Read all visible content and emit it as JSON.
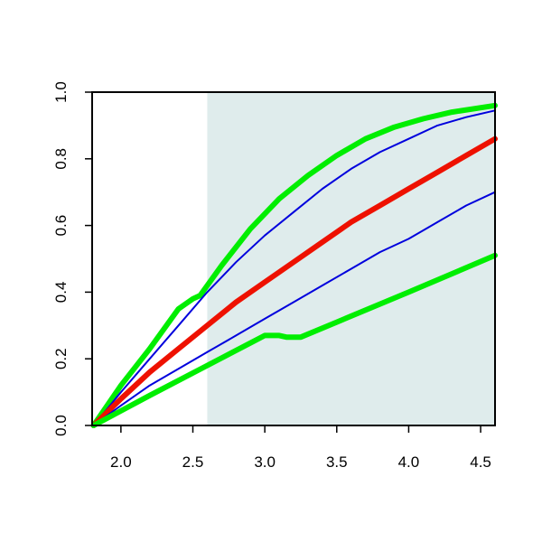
{
  "chart_data": {
    "type": "line",
    "xlim": [
      1.8,
      4.6
    ],
    "ylim": [
      0,
      1
    ],
    "x_ticks": [
      {
        "value": 2.0,
        "label": "2.0"
      },
      {
        "value": 2.5,
        "label": "2.5"
      },
      {
        "value": 3.0,
        "label": "3.0"
      },
      {
        "value": 3.5,
        "label": "3.5"
      },
      {
        "value": 4.0,
        "label": "4.0"
      },
      {
        "value": 4.5,
        "label": "4.5"
      }
    ],
    "y_ticks": [
      {
        "value": 0.0,
        "label": "0.0"
      },
      {
        "value": 0.2,
        "label": "0.2"
      },
      {
        "value": 0.4,
        "label": "0.4"
      },
      {
        "value": 0.6,
        "label": "0.6"
      },
      {
        "value": 0.8,
        "label": "0.8"
      },
      {
        "value": 1.0,
        "label": "1.0"
      }
    ],
    "shaded_region": {
      "x_from": 2.6,
      "x_to": 4.6,
      "color": "#dfecec"
    },
    "grid": false,
    "legend": "none",
    "series": [
      {
        "color": "#00ee00",
        "weight": "thick",
        "x": [
          1.81,
          2.0,
          2.2,
          2.4,
          2.5,
          2.55,
          2.7,
          2.9,
          3.1,
          3.3,
          3.5,
          3.7,
          3.9,
          4.1,
          4.3,
          4.6
        ],
        "y": [
          0.0,
          0.12,
          0.23,
          0.35,
          0.38,
          0.39,
          0.48,
          0.59,
          0.68,
          0.75,
          0.81,
          0.86,
          0.895,
          0.92,
          0.94,
          0.96
        ]
      },
      {
        "color": "#0000dd",
        "weight": "thin",
        "x": [
          1.81,
          2.0,
          2.2,
          2.4,
          2.6,
          2.8,
          3.0,
          3.2,
          3.4,
          3.6,
          3.8,
          4.0,
          4.2,
          4.4,
          4.6
        ],
        "y": [
          0.0,
          0.1,
          0.2,
          0.3,
          0.4,
          0.49,
          0.57,
          0.64,
          0.71,
          0.77,
          0.82,
          0.86,
          0.9,
          0.925,
          0.945
        ]
      },
      {
        "color": "#ee1100",
        "weight": "thick",
        "x": [
          1.81,
          2.0,
          2.2,
          2.4,
          2.6,
          2.8,
          3.0,
          3.2,
          3.4,
          3.6,
          3.8,
          4.0,
          4.2,
          4.4,
          4.6
        ],
        "y": [
          0.0,
          0.08,
          0.16,
          0.23,
          0.3,
          0.37,
          0.43,
          0.49,
          0.55,
          0.61,
          0.66,
          0.71,
          0.76,
          0.81,
          0.86
        ]
      },
      {
        "color": "#0000dd",
        "weight": "thin",
        "x": [
          1.81,
          2.0,
          2.2,
          2.4,
          2.6,
          2.8,
          3.0,
          3.2,
          3.4,
          3.6,
          3.8,
          4.0,
          4.2,
          4.4,
          4.6
        ],
        "y": [
          0.0,
          0.06,
          0.12,
          0.17,
          0.22,
          0.27,
          0.32,
          0.37,
          0.42,
          0.47,
          0.52,
          0.56,
          0.61,
          0.66,
          0.7
        ]
      },
      {
        "color": "#00ee00",
        "weight": "thick",
        "x": [
          1.81,
          2.2,
          2.6,
          3.0,
          3.1,
          3.15,
          3.25,
          3.5,
          4.0,
          4.6
        ],
        "y": [
          0.0,
          0.09,
          0.18,
          0.27,
          0.27,
          0.265,
          0.265,
          0.31,
          0.4,
          0.51
        ]
      }
    ]
  }
}
